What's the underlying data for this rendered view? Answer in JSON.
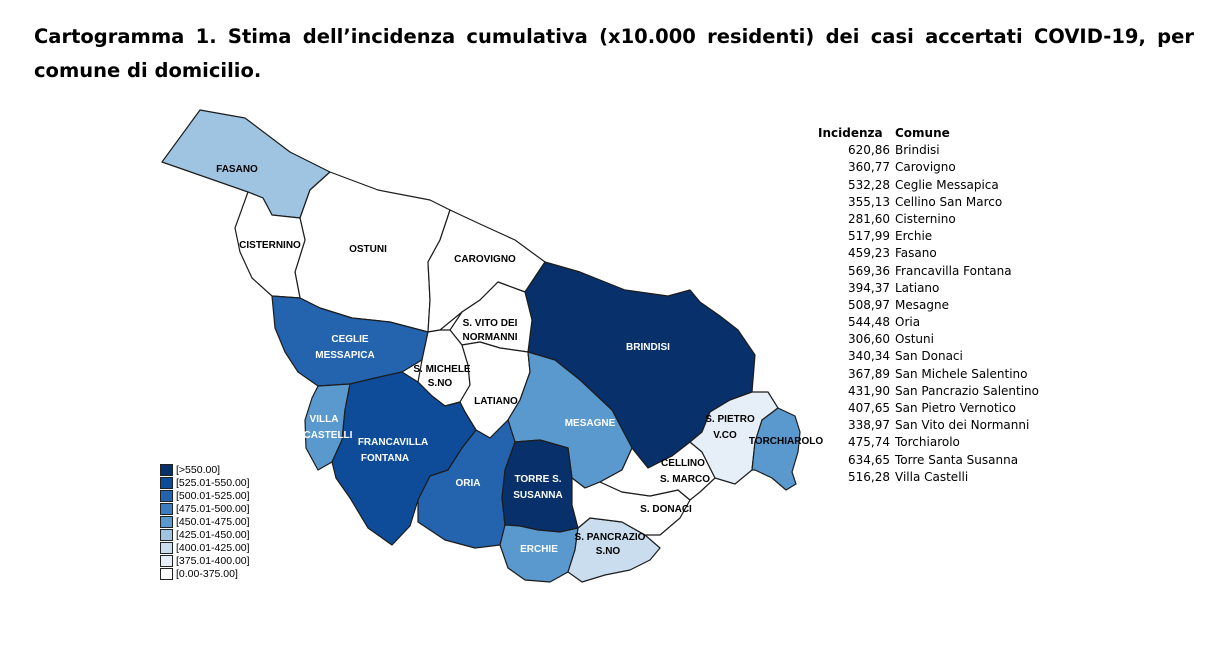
{
  "title": "Cartogramma 1. Stima dell’incidenza cumulativa (x10.000 residenti) dei casi accertati COVID-19, per comune di domicilio.",
  "colors": {
    "class_9": "#08306b",
    "class_8": "#0e4c9a",
    "class_7": "#2464ae",
    "class_6": "#3c7dc0",
    "class_5": "#5a99cd",
    "class_4": "#9ec4e1",
    "class_3": "#c9ddef",
    "class_2": "#e6eff8",
    "class_1": "#ffffff"
  },
  "legend": [
    {
      "label": "[>550.00]",
      "color": "#08306b"
    },
    {
      "label": "[525.01-550.00]",
      "color": "#0e4c9a"
    },
    {
      "label": "[500.01-525.00]",
      "color": "#2464ae"
    },
    {
      "label": "[475.01-500.00]",
      "color": "#3c7dc0"
    },
    {
      "label": "[450.01-475.00]",
      "color": "#5a99cd"
    },
    {
      "label": "[425.01-450.00]",
      "color": "#9ec4e1"
    },
    {
      "label": "[400.01-425.00]",
      "color": "#c9ddef"
    },
    {
      "label": "[375.01-400.00]",
      "color": "#e6eff8"
    },
    {
      "label": "[0.00-375.00]",
      "color": "#ffffff"
    }
  ],
  "map_labels": {
    "fasano": "FASANO",
    "ostuni": "OSTUNI",
    "cisternino": "CISTERNINO",
    "carovigno": "CAROVIGNO",
    "brindisi": "BRINDISI",
    "ceglie": [
      "CEGLIE",
      "MESSAPICA"
    ],
    "svito": [
      "S. VITO DEI",
      "NORMANNI"
    ],
    "smichele": [
      "S. MICHELE",
      "S.NO"
    ],
    "latiano": "LATIANO",
    "mesagne": "MESAGNE",
    "villa": [
      "VILLA",
      "CASTELLI"
    ],
    "francavilla": [
      "FRANCAVILLA",
      "FONTANA"
    ],
    "oria": "ORIA",
    "torre": [
      "TORRE S.",
      "SUSANNA"
    ],
    "erchie": "ERCHIE",
    "spancrazio": [
      "S. PANCRAZIO",
      "S.NO"
    ],
    "sdonaci": "S. DONACI",
    "cellino": [
      "CELLINO",
      "S. MARCO"
    ],
    "spietro": [
      "S. PIETRO",
      "V.CO"
    ],
    "torchiarolo": "TORCHIAROLO"
  },
  "table": {
    "header": {
      "value": "Incidenza",
      "name": "Comune"
    },
    "rows": [
      {
        "value": "620,86",
        "name": "Brindisi"
      },
      {
        "value": "360,77",
        "name": "Carovigno"
      },
      {
        "value": "532,28",
        "name": "Ceglie Messapica"
      },
      {
        "value": "355,13",
        "name": "Cellino San Marco"
      },
      {
        "value": "281,60",
        "name": "Cisternino"
      },
      {
        "value": "517,99",
        "name": "Erchie"
      },
      {
        "value": "459,23",
        "name": "Fasano"
      },
      {
        "value": "569,36",
        "name": "Francavilla Fontana"
      },
      {
        "value": "394,37",
        "name": "Latiano"
      },
      {
        "value": "508,97",
        "name": "Mesagne"
      },
      {
        "value": "544,48",
        "name": "Oria"
      },
      {
        "value": "306,60",
        "name": "Ostuni"
      },
      {
        "value": "340,34",
        "name": "San Donaci"
      },
      {
        "value": "367,89",
        "name": "San Michele Salentino"
      },
      {
        "value": "431,90",
        "name": "San Pancrazio Salentino"
      },
      {
        "value": "407,65",
        "name": "San Pietro Vernotico"
      },
      {
        "value": "338,97",
        "name": "San Vito dei Normanni"
      },
      {
        "value": "475,74",
        "name": "Torchiarolo"
      },
      {
        "value": "634,65",
        "name": "Torre Santa Susanna"
      },
      {
        "value": "516,28",
        "name": "Villa Castelli"
      }
    ]
  }
}
